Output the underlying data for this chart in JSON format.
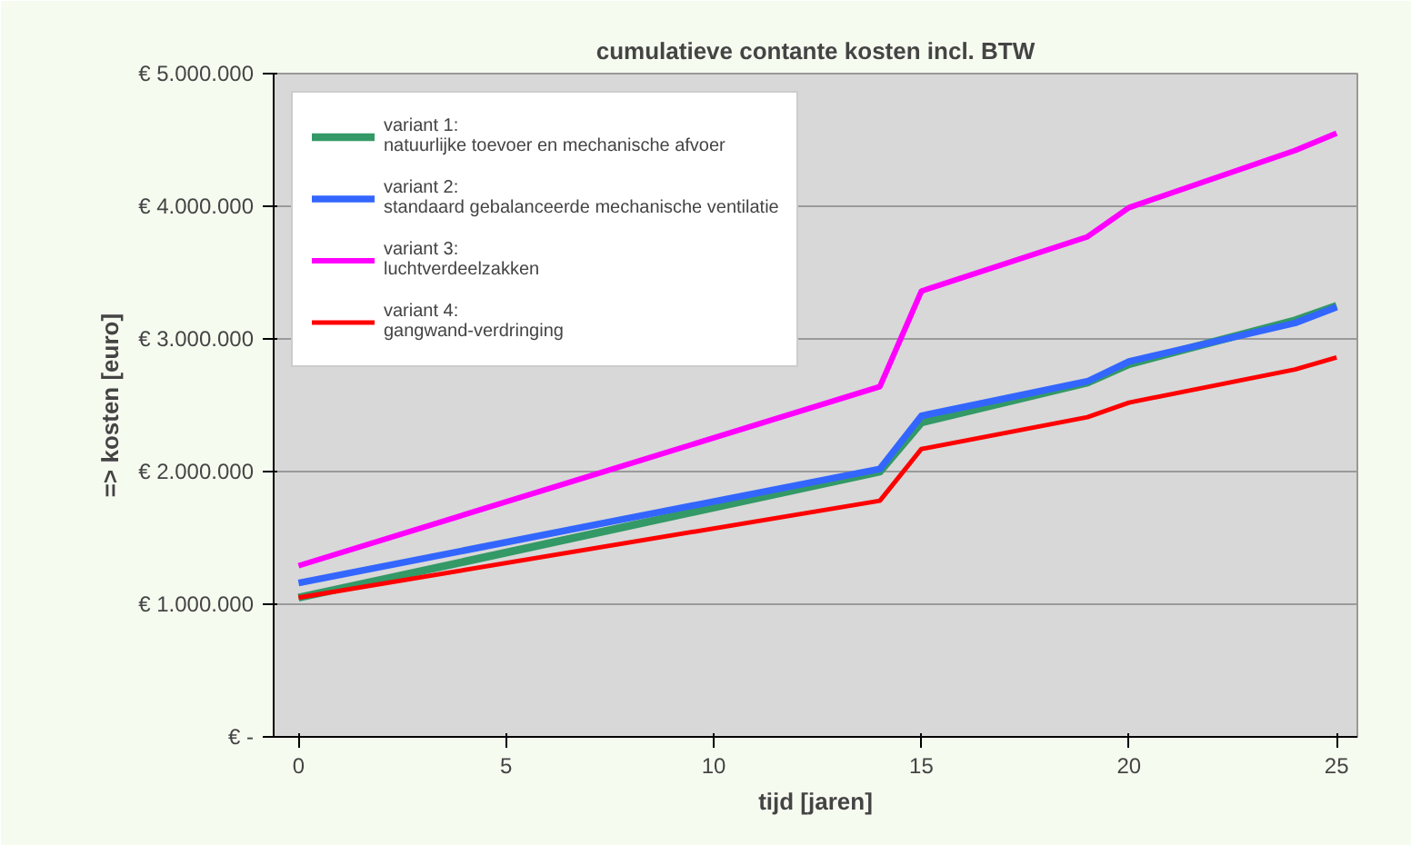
{
  "chart_data": {
    "type": "line",
    "title": "cumulatieve contante kosten incl. BTW",
    "xlabel": "tijd [jaren]",
    "ylabel": "=> kosten [euro]",
    "x": [
      0,
      14,
      15,
      19,
      20,
      24,
      25
    ],
    "series": [
      {
        "name": "variant 1:\nnatuurlijke toevoer en mechanische afvoer",
        "color": "#339966",
        "values": [
          1050000,
          2000000,
          2370000,
          2670000,
          2810000,
          3140000,
          3250000
        ]
      },
      {
        "name": "variant 2:\nstandaard gebalanceerde mechanische ventilatie",
        "color": "#3366ff",
        "values": [
          1160000,
          2020000,
          2420000,
          2680000,
          2830000,
          3120000,
          3240000
        ]
      },
      {
        "name": "variant 3:\nluchtverdeelzakken",
        "color": "#ff00ff",
        "values": [
          1290000,
          2640000,
          3360000,
          3770000,
          3990000,
          4420000,
          4550000
        ]
      },
      {
        "name": "variant 4:\ngangwand-verdringing",
        "color": "#ff0000",
        "values": [
          1050000,
          1780000,
          2170000,
          2410000,
          2520000,
          2770000,
          2860000
        ]
      }
    ],
    "xlim": [
      -0.6,
      25.5
    ],
    "ylim": [
      0,
      5000000
    ],
    "xticks": [
      0,
      5,
      10,
      15,
      20,
      25
    ],
    "yticks": [
      {
        "value": 0,
        "label": "€ -"
      },
      {
        "value": 1000000,
        "label": "€ 1.000.000"
      },
      {
        "value": 2000000,
        "label": "€ 2.000.000"
      },
      {
        "value": 3000000,
        "label": "€ 3.000.000"
      },
      {
        "value": 4000000,
        "label": "€ 4.000.000"
      },
      {
        "value": 5000000,
        "label": "€ 5.000.000"
      }
    ],
    "grid": "y",
    "legend": "top left",
    "marker": "none",
    "line_style": "solid"
  }
}
